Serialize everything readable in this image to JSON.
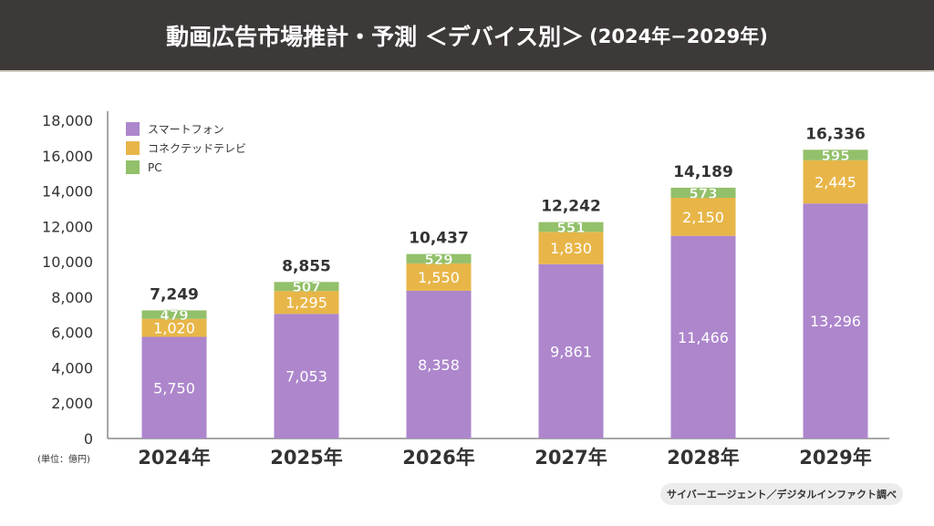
{
  "header": {
    "title": "動画広告市場推計・予測 ＜デバイス別＞",
    "subtitle": "(2024年−2029年)"
  },
  "source": "サイバーエージェント／デジタルインファクト調べ",
  "chart_data": {
    "type": "bar",
    "stacked": true,
    "categories": [
      "2024年",
      "2025年",
      "2026年",
      "2027年",
      "2028年",
      "2029年"
    ],
    "series": [
      {
        "name": "スマートフォン",
        "color": "#ad86cc",
        "values": [
          5750,
          7053,
          8358,
          9861,
          11466,
          13296
        ]
      },
      {
        "name": "コネクテッドテレビ",
        "color": "#e8b648",
        "values": [
          1020,
          1295,
          1550,
          1830,
          2150,
          2445
        ]
      },
      {
        "name": "PC",
        "color": "#93c06a",
        "values": [
          479,
          507,
          529,
          551,
          573,
          595
        ]
      }
    ],
    "totals": [
      7249,
      8855,
      10437,
      12242,
      14189,
      16336
    ],
    "ylim": [
      0,
      18000
    ],
    "yticks": [
      0,
      2000,
      4000,
      6000,
      8000,
      10000,
      12000,
      14000,
      16000,
      18000
    ],
    "unit_label": "(単位：億円)",
    "legend": "top-left",
    "grid": false
  }
}
